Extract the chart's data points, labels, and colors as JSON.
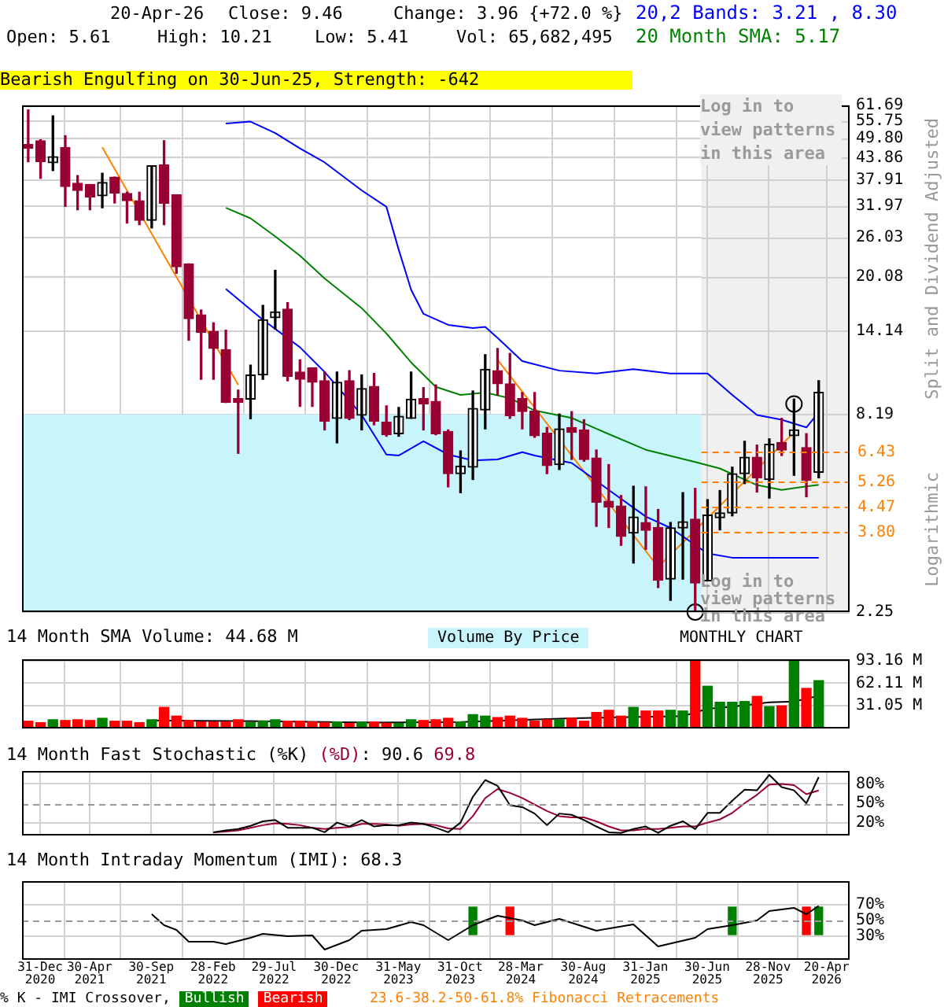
{
  "chart_data": [
    {
      "type": "candlestick",
      "ylabel": "Split and Dividend Adjusted",
      "log": true,
      "grid": true,
      "legend": "top right",
      "tick_labels": "y",
      "annotations": [
        "20-Apr-26",
        "Close: 9.46",
        "Change: 3.96 {+72.0 %}",
        "Open: 5.61",
        "High: 10.21",
        "Low: 5.41",
        "Vol: 65,682,495",
        "Bearish Engulfing on 30-Jun-25, Strength: -642",
        "Log in to view patterns in this area",
        "Log in to view patterns in this area",
        "MONTHLY CHART",
        "Logarithmic",
        "23.6-38.2-50-61.8% Fibonacci Retracements"
      ],
      "xlim": [
        "2020-11-16",
        "2026-06-16"
      ],
      "xticks": [
        {
          "value": "2020-12-31",
          "label": null
        },
        {
          "value": "2021-04-30",
          "label": null
        },
        {
          "value": "2021-09-30",
          "label": null
        },
        {
          "value": "2022-02-28",
          "label": null
        },
        {
          "value": "2022-07-29",
          "label": null
        },
        {
          "value": "2022-12-30",
          "label": null
        },
        {
          "value": "2023-05-31",
          "label": null
        },
        {
          "value": "2023-10-31",
          "label": null
        },
        {
          "value": "2024-03-28",
          "label": null
        },
        {
          "value": "2024-08-30",
          "label": null
        },
        {
          "value": "2025-01-31",
          "label": null
        },
        {
          "value": "2025-06-30",
          "label": null
        },
        {
          "value": "2025-11-28",
          "label": null
        },
        {
          "value": "2026-04-20",
          "label": null
        }
      ],
      "ylim": [
        2.25,
        61.69
      ],
      "yticks": [
        2.25,
        8.19,
        14.14,
        20.08,
        26.03,
        31.97,
        37.91,
        43.86,
        {
          "value": 49.8,
          "label": "49.80"
        },
        55.75,
        61.69
      ],
      "bands": [
        {
          "axis": "y",
          "from": 2.25,
          "to": 8.19,
          "color": "#c8f5fb",
          "label": "Volume By Price"
        },
        {
          "axis": "x",
          "from": "2025-06-16",
          "to": "2026-06-16",
          "color": "#f0f0f0"
        }
      ],
      "ref_lines": [
        {
          "axis": "y",
          "value": 6.43,
          "label": "6.43",
          "color": "#ff8000",
          "line_style": "dashed"
        },
        {
          "axis": "y",
          "value": 5.26,
          "label": "5.26",
          "color": "#ff8000",
          "line_style": "dashed"
        },
        {
          "axis": "y",
          "value": 4.47,
          "label": "4.47",
          "color": "#ff8000",
          "line_style": "dashed"
        },
        {
          "axis": "y",
          "value": 3.8,
          "label": "3.80",
          "color": "#ff8000",
          "line_style": "dashed"
        }
      ],
      "x": [
        "2020-12",
        "2021-01",
        "2021-02",
        "2021-03",
        "2021-04",
        "2021-05",
        "2021-06",
        "2021-07",
        "2021-08",
        "2021-09",
        "2021-10",
        "2021-11",
        "2021-12",
        "2022-01",
        "2022-02",
        "2022-03",
        "2022-04",
        "2022-05",
        "2022-06",
        "2022-07",
        "2022-08",
        "2022-09",
        "2022-10",
        "2022-11",
        "2022-12",
        "2023-01",
        "2023-02",
        "2023-03",
        "2023-04",
        "2023-05",
        "2023-06",
        "2023-07",
        "2023-08",
        "2023-09",
        "2023-10",
        "2023-11",
        "2023-12",
        "2024-01",
        "2024-02",
        "2024-03",
        "2024-04",
        "2024-05",
        "2024-06",
        "2024-07",
        "2024-08",
        "2024-09",
        "2024-10",
        "2024-11",
        "2024-12",
        "2025-01",
        "2025-02",
        "2025-03",
        "2025-04",
        "2025-05",
        "2025-06",
        "2025-07",
        "2025-08",
        "2025-09",
        "2025-10",
        "2025-11",
        "2025-12",
        "2026-01",
        "2026-02",
        "2026-03",
        "2026-04"
      ],
      "series": [
        {
          "colors": [
            "#990033",
            "#990033",
            "#000000",
            "#990033",
            "#990033",
            "#990033",
            "#000000",
            "#990033",
            "#990033",
            "#990033",
            "#000000",
            "#990033",
            "#990033",
            "#990033",
            "#990033",
            "#990033",
            "#990033",
            "#990033",
            "#000000",
            "#000000",
            "#000000",
            "#990033",
            "#990033",
            "#990033",
            "#990033",
            "#000000",
            "#990033",
            "#000000",
            "#990033",
            "#990033",
            "#000000",
            "#000000",
            "#990033",
            "#990033",
            "#990033",
            "#000000",
            "#000000",
            "#000000",
            "#990033",
            "#990033",
            "#990033",
            "#990033",
            "#990033",
            "#000000",
            "#990033",
            "#990033",
            "#990033",
            "#990033",
            "#990033",
            "#000000",
            "#990033",
            "#990033",
            "#000000",
            "#000000",
            "#990033",
            "#000000",
            "#000000",
            "#000000",
            "#000000",
            "#990033",
            "#000000",
            "#990033",
            "#000000",
            "#990033",
            "#000000"
          ],
          "ohlc": [
            [
              47.8,
              59.9,
              42.7,
              46.6
            ],
            [
              49.0,
              49.3,
              38.3,
              42.7
            ],
            [
              42.4,
              57.6,
              40.3,
              44.1
            ],
            [
              46.9,
              50.6,
              31.9,
              36.3
            ],
            [
              37.1,
              39.0,
              31.2,
              35.4
            ],
            [
              36.8,
              36.8,
              31.2,
              33.9
            ],
            [
              34.2,
              39.6,
              31.6,
              37.3
            ],
            [
              38.6,
              38.6,
              32.6,
              34.8
            ],
            [
              34.7,
              35.0,
              28.6,
              33.1
            ],
            [
              33.1,
              35.0,
              28.3,
              29.1
            ],
            [
              29.1,
              41.6,
              27.7,
              41.6
            ],
            [
              41.8,
              49.0,
              28.3,
              32.5
            ],
            [
              34.4,
              34.4,
              20.6,
              21.5
            ],
            [
              21.9,
              21.9,
              13.3,
              15.3
            ],
            [
              15.7,
              16.2,
              10.3,
              14.0
            ],
            [
              14.1,
              14.9,
              10.3,
              12.6
            ],
            [
              12.5,
              14.2,
              8.85,
              8.85
            ],
            [
              9.08,
              9.6,
              6.35,
              8.85
            ],
            [
              9.05,
              11.3,
              7.96,
              10.6
            ],
            [
              10.6,
              16.7,
              10.3,
              15.2
            ],
            [
              15.4,
              21.0,
              14.3,
              16.0
            ],
            [
              16.3,
              17.0,
              10.2,
              10.5
            ],
            [
              10.8,
              11.7,
              8.63,
              10.3
            ],
            [
              11.1,
              11.1,
              8.63,
              10.1
            ],
            [
              10.2,
              10.8,
              7.4,
              7.83
            ],
            [
              7.98,
              10.8,
              6.8,
              10.1
            ],
            [
              10.2,
              10.9,
              7.91,
              7.98
            ],
            [
              8.14,
              10.6,
              7.4,
              9.7
            ],
            [
              9.83,
              10.7,
              7.65,
              7.83
            ],
            [
              7.78,
              8.66,
              7.1,
              7.17
            ],
            [
              7.22,
              8.57,
              7.1,
              8.09
            ],
            [
              7.98,
              10.8,
              7.98,
              9.05
            ],
            [
              9.08,
              9.76,
              7.4,
              8.77
            ],
            [
              8.92,
              9.93,
              7.17,
              7.22
            ],
            [
              7.33,
              7.4,
              5.1,
              5.56
            ],
            [
              5.56,
              6.45,
              4.91,
              5.84
            ],
            [
              5.8,
              9.54,
              5.35,
              8.52
            ],
            [
              8.43,
              12.1,
              7.45,
              11.0
            ],
            [
              10.9,
              12.6,
              9.3,
              10.0
            ],
            [
              10.0,
              12.2,
              7.98,
              8.12
            ],
            [
              9.08,
              9.45,
              7.45,
              8.34
            ],
            [
              8.37,
              9.45,
              7.05,
              7.12
            ],
            [
              7.24,
              7.52,
              5.56,
              5.86
            ],
            [
              5.9,
              8.21,
              5.71,
              7.45
            ],
            [
              7.52,
              8.34,
              6.1,
              7.28
            ],
            [
              7.4,
              7.91,
              6.03,
              6.1
            ],
            [
              6.16,
              6.49,
              3.94,
              4.61
            ],
            [
              4.64,
              5.9,
              3.91,
              4.47
            ],
            [
              4.5,
              4.82,
              3.48,
              3.69
            ],
            [
              3.77,
              5.12,
              3.1,
              4.19
            ],
            [
              4.04,
              5.1,
              3.39,
              3.84
            ],
            [
              3.91,
              4.4,
              2.64,
              2.77
            ],
            [
              2.79,
              4.04,
              2.43,
              3.9
            ],
            [
              3.9,
              4.91,
              2.79,
              4.06
            ],
            [
              4.13,
              5.05,
              2.25,
              2.72
            ],
            [
              2.76,
              4.69,
              2.76,
              4.24
            ],
            [
              4.17,
              4.98,
              3.85,
              4.3
            ],
            [
              4.3,
              5.8,
              4.22,
              5.56
            ],
            [
              5.56,
              6.87,
              5.21,
              6.19
            ],
            [
              6.19,
              6.7,
              4.93,
              5.41
            ],
            [
              5.35,
              6.98,
              4.74,
              6.74
            ],
            [
              6.82,
              7.98,
              6.26,
              6.49
            ],
            [
              7.12,
              9.05,
              5.5,
              7.4
            ],
            [
              6.59,
              7.22,
              4.78,
              5.32
            ],
            [
              5.61,
              10.21,
              5.41,
              9.46
            ]
          ]
        },
        {
          "type": "line",
          "name": "20,2 Bands: 3.21 , 8.30",
          "color": "#0000ff",
          "x": [
            "2022-04",
            "2022-06",
            "2022-08",
            "2022-10",
            "2022-12",
            "2023-03",
            "2023-05",
            "2023-06",
            "2023-07",
            "2023-08",
            "2023-10",
            "2023-12",
            "2024-01",
            "2024-02",
            "2024-04",
            "2024-07",
            "2024-10",
            "2025-01",
            "2025-04",
            "2025-07",
            "2025-09",
            "2025-11",
            "2026-01",
            "2026-03",
            "2026-04"
          ],
          "values": [
            54.8,
            55.5,
            51.5,
            46.6,
            42.5,
            35.4,
            31.8,
            24,
            18.5,
            15.8,
            14.7,
            14.4,
            14.5,
            13.5,
            11.6,
            10.9,
            10.7,
            11.0,
            10.7,
            10.7,
            9.3,
            8.16,
            7.91,
            7.52,
            8.3
          ]
        },
        {
          "type": "line",
          "color": "#0000ff",
          "x": [
            "2022-04",
            "2022-07",
            "2022-10",
            "2022-12",
            "2023-03",
            "2023-05",
            "2023-06",
            "2023-08",
            "2023-10",
            "2023-12",
            "2024-02",
            "2024-04",
            "2024-05",
            "2024-08",
            "2024-11",
            "2025-02",
            "2025-04",
            "2025-07",
            "2025-09",
            "2026-04"
          ],
          "values": [
            18.6,
            15.2,
            12.7,
            10.8,
            8.16,
            6.3,
            6.26,
            6.87,
            6.3,
            6.06,
            6.1,
            6.4,
            6.26,
            5.96,
            5.0,
            4.2,
            3.9,
            3.3,
            3.21,
            3.21
          ]
        },
        {
          "type": "line",
          "name": "20 Month SMA: 5.17",
          "color": "#008000",
          "x": [
            "2022-04",
            "2022-06",
            "2022-08",
            "2022-10",
            "2022-12",
            "2023-03",
            "2023-05",
            "2023-07",
            "2023-09",
            "2023-11",
            "2024-01",
            "2024-03",
            "2024-05",
            "2024-08",
            "2024-11",
            "2025-02",
            "2025-06",
            "2025-08",
            "2025-11",
            "2026-01",
            "2026-04"
          ],
          "values": [
            31.6,
            29.5,
            26.2,
            23.1,
            19.9,
            16.4,
            13.9,
            11.5,
            9.8,
            9.3,
            9.45,
            9.1,
            8.4,
            8.0,
            7.2,
            6.5,
            6.0,
            5.75,
            5.16,
            5.0,
            5.17
          ]
        },
        {
          "type": "line",
          "color": "#ff8000",
          "x": [
            "2021-06",
            "2022-05"
          ],
          "values": [
            46.9,
            9.93
          ]
        },
        {
          "type": "line",
          "color": "#ff8000",
          "x": [
            "2024-02",
            "2025-03",
            "2026-02"
          ],
          "values": [
            11.7,
            3.02,
            7.28
          ]
        },
        {
          "type": "scatter",
          "marker": "circle",
          "color": "#000000",
          "x": [
            "2025-06",
            "2026-02"
          ],
          "values": [
            2.25,
            8.77
          ]
        }
      ]
    },
    {
      "type": "bar",
      "grid": true,
      "legend": "top left",
      "tick_labels": "y",
      "xlim": [
        "2020-11-16",
        "2026-06-16"
      ],
      "xticks": [
        {
          "value": "2020-12-31",
          "label": null
        },
        {
          "value": "2021-04-30",
          "label": null
        },
        {
          "value": "2021-09-30",
          "label": null
        },
        {
          "value": "2022-02-28",
          "label": null
        },
        {
          "value": "2022-07-29",
          "label": null
        },
        {
          "value": "2022-12-30",
          "label": null
        },
        {
          "value": "2023-05-31",
          "label": null
        },
        {
          "value": "2023-10-31",
          "label": null
        },
        {
          "value": "2024-03-28",
          "label": null
        },
        {
          "value": "2024-08-30",
          "label": null
        },
        {
          "value": "2025-01-31",
          "label": null
        },
        {
          "value": "2025-06-30",
          "label": null
        },
        {
          "value": "2025-11-28",
          "label": null
        },
        {
          "value": "2026-04-20",
          "label": null
        }
      ],
      "ylim": [
        0,
        95
      ],
      "yticks": [
        {
          "value": 31.05,
          "label": "31.05 M"
        },
        {
          "value": 62.11,
          "label": "62.11 M"
        },
        {
          "value": 93.16,
          "label": "93.16 M"
        }
      ],
      "x": [
        "2020-12",
        "2021-01",
        "2021-02",
        "2021-03",
        "2021-04",
        "2021-05",
        "2021-06",
        "2021-07",
        "2021-08",
        "2021-09",
        "2021-10",
        "2021-11",
        "2021-12",
        "2022-01",
        "2022-02",
        "2022-03",
        "2022-04",
        "2022-05",
        "2022-06",
        "2022-07",
        "2022-08",
        "2022-09",
        "2022-10",
        "2022-11",
        "2022-12",
        "2023-01",
        "2023-02",
        "2023-03",
        "2023-04",
        "2023-05",
        "2023-06",
        "2023-07",
        "2023-08",
        "2023-09",
        "2023-10",
        "2023-11",
        "2023-12",
        "2024-01",
        "2024-02",
        "2024-03",
        "2024-04",
        "2024-05",
        "2024-06",
        "2024-07",
        "2024-08",
        "2024-09",
        "2024-10",
        "2024-11",
        "2024-12",
        "2025-01",
        "2025-02",
        "2025-03",
        "2025-04",
        "2025-05",
        "2025-06",
        "2025-07",
        "2025-08",
        "2025-09",
        "2025-10",
        "2025-11",
        "2025-12",
        "2026-01",
        "2026-02",
        "2026-03",
        "2026-04"
      ],
      "series": [
        {
          "values": [
            10,
            8,
            12,
            11,
            12,
            11,
            14,
            10,
            10,
            8,
            12,
            29,
            17,
            11,
            9,
            9,
            9,
            12,
            8,
            10,
            12,
            10,
            10,
            9,
            8,
            9,
            7,
            9,
            9,
            7,
            7,
            12,
            11,
            12,
            14,
            9,
            19,
            17,
            15,
            17,
            14,
            10,
            12,
            12,
            14,
            10,
            22,
            25,
            17,
            29,
            24,
            24,
            25,
            24,
            93,
            58,
            36,
            36,
            37,
            44,
            30,
            31,
            93,
            55,
            65.68
          ],
          "colors": [
            "#ff0000",
            "#ff0000",
            "#008000",
            "#ff0000",
            "#ff0000",
            "#ff0000",
            "#008000",
            "#ff0000",
            "#ff0000",
            "#ff0000",
            "#008000",
            "#ff0000",
            "#ff0000",
            "#ff0000",
            "#ff0000",
            "#ff0000",
            "#ff0000",
            "#ff0000",
            "#008000",
            "#008000",
            "#008000",
            "#ff0000",
            "#ff0000",
            "#ff0000",
            "#ff0000",
            "#008000",
            "#ff0000",
            "#008000",
            "#ff0000",
            "#ff0000",
            "#008000",
            "#008000",
            "#ff0000",
            "#ff0000",
            "#ff0000",
            "#008000",
            "#008000",
            "#008000",
            "#ff0000",
            "#ff0000",
            "#ff0000",
            "#ff0000",
            "#ff0000",
            "#008000",
            "#ff0000",
            "#ff0000",
            "#ff0000",
            "#ff0000",
            "#ff0000",
            "#008000",
            "#ff0000",
            "#ff0000",
            "#008000",
            "#008000",
            "#ff0000",
            "#008000",
            "#008000",
            "#008000",
            "#008000",
            "#ff0000",
            "#008000",
            "#ff0000",
            "#008000",
            "#ff0000",
            "#008000"
          ]
        },
        {
          "type": "line",
          "name": "14 Month SMA Volume: 44.68 M",
          "color": "#000000",
          "x": [
            "2021-10",
            "2022-07",
            "2023-04",
            "2023-11",
            "2024-08",
            "2025-05",
            "2025-07",
            "2025-09",
            "2025-12",
            "2026-02",
            "2026-03",
            "2026-04"
          ],
          "values": [
            11,
            10,
            8,
            9,
            14,
            17,
            27,
            30,
            36,
            37,
            41,
            44.68
          ]
        }
      ]
    },
    {
      "type": "line",
      "title": "14 Month Fast Stochastic",
      "annotations": [
        ": 90.6",
        "69.8"
      ],
      "grid": true,
      "legend": "top left",
      "tick_labels": "y",
      "xlim": [
        "2020-11-16",
        "2026-06-16"
      ],
      "xticks": [
        {
          "value": "2020-12-31",
          "label": null
        },
        {
          "value": "2021-04-30",
          "label": null
        },
        {
          "value": "2021-09-30",
          "label": null
        },
        {
          "value": "2022-02-28",
          "label": null
        },
        {
          "value": "2022-07-29",
          "label": null
        },
        {
          "value": "2022-12-30",
          "label": null
        },
        {
          "value": "2023-05-31",
          "label": null
        },
        {
          "value": "2023-10-31",
          "label": null
        },
        {
          "value": "2024-03-28",
          "label": null
        },
        {
          "value": "2024-08-30",
          "label": null
        },
        {
          "value": "2025-01-31",
          "label": null
        },
        {
          "value": "2025-06-30",
          "label": null
        },
        {
          "value": "2025-11-28",
          "label": null
        },
        {
          "value": "2026-04-20",
          "label": null
        }
      ],
      "ylim": [
        0,
        100
      ],
      "yticks": [
        {
          "value": 20,
          "label": "20%"
        },
        {
          "value": 50,
          "label": "50%"
        },
        {
          "value": 80,
          "label": "80%"
        }
      ],
      "ref_lines": [
        {
          "axis": "y",
          "value": 50,
          "color": "#999999",
          "line_style": "dashed"
        }
      ],
      "x": [
        "2022-03",
        "2022-04",
        "2022-05",
        "2022-06",
        "2022-07",
        "2022-08",
        "2022-09",
        "2022-10",
        "2022-11",
        "2022-12",
        "2023-01",
        "2023-02",
        "2023-03",
        "2023-04",
        "2023-05",
        "2023-06",
        "2023-07",
        "2023-08",
        "2023-09",
        "2023-10",
        "2023-11",
        "2023-12",
        "2024-01",
        "2024-02",
        "2024-03",
        "2024-04",
        "2024-05",
        "2024-06",
        "2024-07",
        "2024-08",
        "2024-09",
        "2024-10",
        "2024-11",
        "2024-12",
        "2025-01",
        "2025-02",
        "2025-03",
        "2025-04",
        "2025-05",
        "2025-06",
        "2025-07",
        "2025-08",
        "2025-09",
        "2025-10",
        "2025-11",
        "2025-12",
        "2026-01",
        "2026-02",
        "2026-03",
        "2026-04"
      ],
      "series": [
        {
          "name": "(%K)",
          "color": "#000000",
          "values": [
            5,
            8,
            10,
            15,
            22,
            24,
            12,
            12,
            12,
            5,
            20,
            14,
            24,
            14,
            16,
            16,
            20,
            18,
            12,
            5,
            20,
            60,
            86,
            77,
            47,
            44,
            34,
            16,
            34,
            32,
            24,
            14,
            5,
            4,
            10,
            14,
            4,
            15,
            22,
            10,
            35,
            35,
            54,
            71,
            70,
            94,
            75,
            70,
            50,
            90.6
          ]
        },
        {
          "name": "(%D)",
          "color": "#990033",
          "values": [
            5,
            6,
            8,
            12,
            16,
            19,
            18,
            16,
            12,
            10,
            12,
            13,
            18,
            18,
            17,
            15,
            17,
            18,
            16,
            11,
            10,
            30,
            58,
            72,
            66,
            58,
            48,
            38,
            30,
            28,
            28,
            22,
            14,
            8,
            8,
            10,
            10,
            12,
            14,
            14,
            20,
            25,
            35,
            50,
            63,
            79,
            80,
            78,
            64,
            69.8
          ]
        }
      ]
    },
    {
      "type": "line",
      "grid": true,
      "legend": "bottom",
      "legend_title": "% K - IMI Crossover,",
      "xlim": [
        "2020-11-16",
        "2026-06-16"
      ],
      "xticks": [
        {
          "value": "2020-12-31",
          "label": "31-Dec 2020"
        },
        {
          "value": "2021-04-30",
          "label": "30-Apr 2021"
        },
        {
          "value": "2021-09-30",
          "label": "30-Sep 2021"
        },
        {
          "value": "2022-02-28",
          "label": "28-Feb 2022"
        },
        {
          "value": "2022-07-29",
          "label": "29-Jul 2022"
        },
        {
          "value": "2022-12-30",
          "label": "30-Dec 2022"
        },
        {
          "value": "2023-05-31",
          "label": "31-May 2023"
        },
        {
          "value": "2023-10-31",
          "label": "31-Oct 2023"
        },
        {
          "value": "2024-03-28",
          "label": "28-Mar 2024"
        },
        {
          "value": "2024-08-30",
          "label": "30-Aug 2024"
        },
        {
          "value": "2025-01-31",
          "label": "31-Jan 2025"
        },
        {
          "value": "2025-06-30",
          "label": "30-Jun 2025"
        },
        {
          "value": "2025-11-28",
          "label": "28-Nov 2025"
        },
        {
          "value": "2026-04-20",
          "label": "20-Apr 2026"
        }
      ],
      "ylim": [
        0,
        100
      ],
      "yticks": [
        {
          "value": 30,
          "label": "30%"
        },
        {
          "value": 50,
          "label": "50%"
        },
        {
          "value": 70,
          "label": "70%"
        }
      ],
      "ref_lines": [
        {
          "axis": "y",
          "value": 50,
          "color": "#999999",
          "line_style": "dashed"
        }
      ],
      "series": [
        {
          "name": "14 Month Intraday Momentum (IMI): 68.3",
          "color": "#000000",
          "x": [
            "2021-10",
            "2021-11",
            "2021-12",
            "2022-01",
            "2022-03",
            "2022-04",
            "2022-06",
            "2022-07",
            "2022-09",
            "2022-11",
            "2022-12",
            "2023-02",
            "2023-03",
            "2023-05",
            "2023-07",
            "2023-08",
            "2023-10",
            "2023-12",
            "2024-02",
            "2024-04",
            "2024-05",
            "2024-07",
            "2024-10",
            "2025-01",
            "2025-03",
            "2025-06",
            "2025-07",
            "2025-09",
            "2025-11",
            "2025-12",
            "2026-02",
            "2026-03",
            "2026-04"
          ],
          "values": [
            58,
            44,
            38,
            23,
            23,
            20,
            28,
            33,
            30,
            31,
            13,
            25,
            37,
            39,
            48,
            44,
            25,
            44,
            56,
            50,
            44,
            52,
            37,
            45,
            17,
            28,
            39,
            44,
            50,
            62,
            66,
            58,
            68.3
          ]
        },
        {
          "type": "bar",
          "name": "Bullish",
          "color": "#008000",
          "x": [
            "2023-12",
            "2025-09",
            "2026-04"
          ],
          "base": [
            32,
            32,
            32
          ],
          "values": [
            35,
            35,
            35
          ]
        },
        {
          "type": "bar",
          "name": "Bearish",
          "color": "#ff0000",
          "x": [
            "2024-03",
            "2026-03"
          ],
          "base": [
            32,
            32
          ],
          "values": [
            35,
            35
          ]
        }
      ]
    }
  ]
}
